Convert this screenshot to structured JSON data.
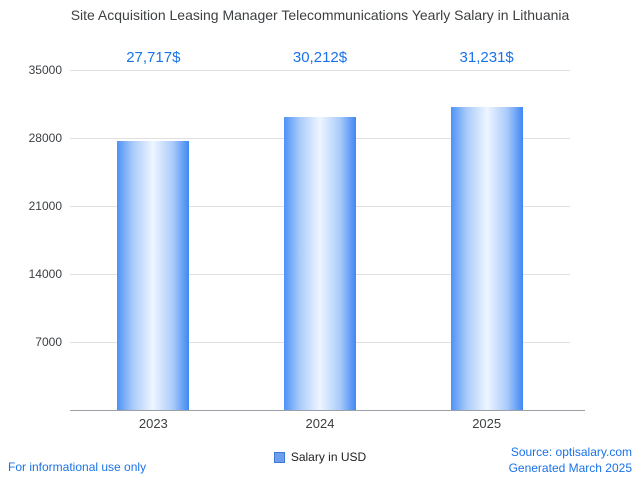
{
  "title": "Site Acquisition Leasing Manager Telecommunications Yearly Salary in Lithuania",
  "chart_data": {
    "type": "bar",
    "title": "Site Acquisition Leasing Manager Telecommunications Yearly Salary in Lithuania",
    "categories": [
      "2023",
      "2024",
      "2025"
    ],
    "values": [
      27717,
      30212,
      31231
    ],
    "value_labels": [
      "27,717$",
      "30,212$",
      "31,231$"
    ],
    "xlabel": "",
    "ylabel": "",
    "ylim": [
      0,
      35000
    ],
    "yticks": [
      7000,
      14000,
      21000,
      28000,
      35000
    ],
    "grid": true,
    "legend_position": "bottom",
    "series_name": "Salary in USD"
  },
  "legend": {
    "label": "Salary in USD"
  },
  "footer": {
    "disclaimer": "For informational use only",
    "source": "Source: optisalary.com",
    "generated": "Generated March 2025"
  },
  "colors": {
    "accent": "#1a73e8",
    "bar_edge": "#4e92f5",
    "bar_center": "#eef5ff",
    "legend_swatch": "#6d9eeb",
    "gridline": "#e0e0e0",
    "title_text": "#3c4043"
  }
}
